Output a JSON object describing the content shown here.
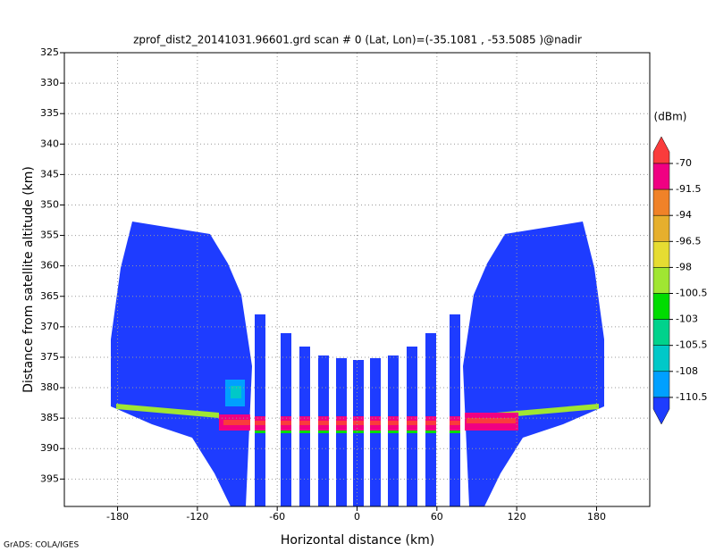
{
  "chart_data": {
    "type": "heatmap",
    "title": "zprof_dist2_20141031.96601.grd  scan # 0  (Lat, Lon)=(-35.1081 , -53.5085 )@nadir",
    "x_label": "Horizontal distance (km)",
    "y_label": "Distance from satellite altitude (km)",
    "xlim": [
      -220,
      220
    ],
    "xticks": [
      -180,
      -120,
      -60,
      0,
      60,
      120,
      180
    ],
    "ylim": [
      325,
      399.5
    ],
    "yticks": [
      325,
      330,
      335,
      340,
      345,
      350,
      355,
      360,
      365,
      370,
      375,
      380,
      385,
      390,
      395
    ],
    "y_inverted": true,
    "grid": true,
    "colorbar": {
      "unit": "(dBm)",
      "levels": [
        -70,
        -91.5,
        -94,
        -96.5,
        -98,
        -100.5,
        -103,
        -105.5,
        -108,
        -110.5
      ],
      "colors": [
        "#fa3c3c",
        "#f00082",
        "#f08228",
        "#e6af2d",
        "#e6dc32",
        "#a0e632",
        "#00dc00",
        "#00d28c",
        "#00c8c8",
        "#00a0ff",
        "#1e3cff"
      ]
    },
    "footer": "GrADS: COLA/IGES"
  }
}
